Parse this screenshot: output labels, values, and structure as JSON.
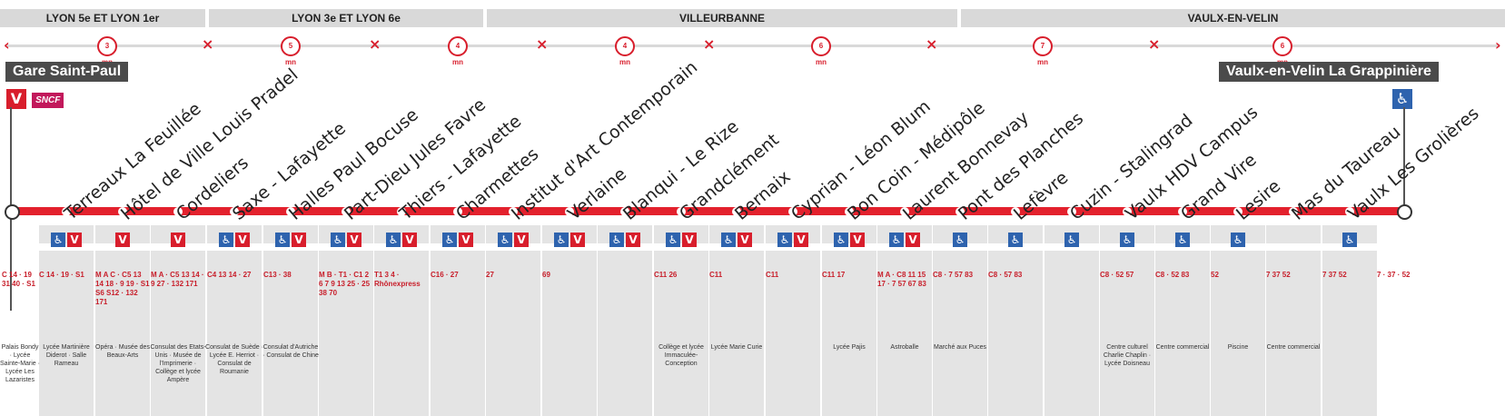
{
  "zones": [
    {
      "label": "LYON 5e ET LYON 1er"
    },
    {
      "label": "LYON 3e ET LYON 6e"
    },
    {
      "label": "VILLEURBANNE"
    },
    {
      "label": "VAULX-EN-VELIN"
    }
  ],
  "durations": [
    "3 mn",
    "5 mn",
    "4 mn",
    "4 mn",
    "6 mn",
    "7 mn",
    "6 mn"
  ],
  "terminus": {
    "west": "Gare Saint-Paul",
    "east": "Vaulx-en-Velin La Grappinière",
    "west_rail": "V",
    "west_rail_brand": "SNCF"
  },
  "stops": [
    {
      "name": "Gare Saint-Paul",
      "connections": "C 14 · 19 31 40 · S1",
      "poi": "Palais Bondy · Lycée Sainte-Marie · Lycée Les Lazaristes"
    },
    {
      "name": "Terreaux La Feuillée",
      "connections": "C 14 · 19 · S1",
      "poi": "Lycée Martinière Diderot · Salle Rameau"
    },
    {
      "name": "Hôtel de Ville Louis Pradel",
      "connections": "M A C · C5 13 14 18 · 9 19 · S1 S6 S12 · 132 171",
      "poi": "Opéra · Musée des Beaux-Arts"
    },
    {
      "name": "Cordeliers",
      "connections": "M A · C5 13 14 · 9 27 · 132 171",
      "poi": "Consulat des Etats-Unis · Musée de l'Imprimerie · Collège et lycée Ampère"
    },
    {
      "name": "Saxe - Lafayette",
      "connections": "C4 13 14 · 27",
      "poi": "Consulat de Suède · Lycée E. Herriot · Consulat de Roumanie"
    },
    {
      "name": "Halles Paul Bocuse",
      "connections": "C13 · 38",
      "poi": "Consulat d'Autriche · Consulat de Chine"
    },
    {
      "name": "Part-Dieu Jules Favre",
      "connections": "M B · T1 · C1 2 6 7 9 13 25 · 25 38 70",
      "poi": ""
    },
    {
      "name": "Thiers - Lafayette",
      "connections": "T1 3 4 · Rhônexpress",
      "poi": ""
    },
    {
      "name": "Charmettes",
      "connections": "C16 · 27",
      "poi": ""
    },
    {
      "name": "Institut d'Art Contemporain",
      "connections": "27",
      "poi": ""
    },
    {
      "name": "Verlaine",
      "connections": "69",
      "poi": ""
    },
    {
      "name": "Blanqui - Le Rize",
      "connections": "",
      "poi": ""
    },
    {
      "name": "Grandclément",
      "connections": "C11 26",
      "poi": "Collège et lycée Immaculée-Conception"
    },
    {
      "name": "Bernaix",
      "connections": "C11",
      "poi": "Lycée Marie Curie"
    },
    {
      "name": "Cyprian - Léon Blum",
      "connections": "C11",
      "poi": ""
    },
    {
      "name": "Bon Coin - Médipôle",
      "connections": "C11 17",
      "poi": "Lycée Pajis"
    },
    {
      "name": "Laurent Bonnevay",
      "connections": "M A · C8 11 15 17 · 7 57 67 83",
      "poi": "Astroballe"
    },
    {
      "name": "Pont des Planches",
      "connections": "C8 · 7 57 83",
      "poi": "Marché aux Puces"
    },
    {
      "name": "Lefèvre",
      "connections": "C8 · 57 83",
      "poi": ""
    },
    {
      "name": "Cuzin - Stalingrad",
      "connections": "",
      "poi": ""
    },
    {
      "name": "Vaulx HDV Campus",
      "connections": "C8 · 52 57",
      "poi": "Centre culturel Charlie Chaplin · Lycée Doisneau"
    },
    {
      "name": "Grand Vire",
      "connections": "C8 · 52 83",
      "poi": "Centre commercial"
    },
    {
      "name": "Lesire",
      "connections": "52",
      "poi": "Piscine"
    },
    {
      "name": "Mas du Taureau",
      "connections": "7 37 52",
      "poi": "Centre commercial"
    },
    {
      "name": "Vaulx Les Grolières",
      "connections": "7 37 52",
      "poi": ""
    },
    {
      "name": "Vaulx-en-Velin La Grappinière",
      "connections": "7 · 37 · 52",
      "poi": ""
    }
  ]
}
